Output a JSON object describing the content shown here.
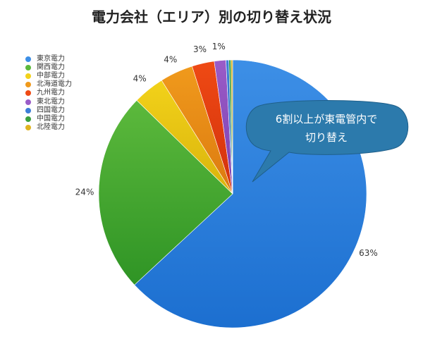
{
  "chart_data": {
    "type": "pie",
    "title": "電力会社（エリア）別の切り替え状況",
    "slices": [
      {
        "name": "東京電力",
        "value": 63.1,
        "label": "63%",
        "color": "#3d8fe6",
        "color2": "#1c6fd0"
      },
      {
        "name": "関西電力",
        "value": 24.2,
        "label": "24%",
        "color": "#5cb93c",
        "color2": "#2f9425"
      },
      {
        "name": "中部電力",
        "value": 3.8,
        "label": "4%",
        "color": "#f2d21a",
        "color2": "#d9b30c"
      },
      {
        "name": "北海道電力",
        "value": 4.0,
        "label": "4%",
        "color": "#f09a1c",
        "color2": "#dc7a10"
      },
      {
        "name": "九州電力",
        "value": 2.7,
        "label": "3%",
        "color": "#ef4a14",
        "color2": "#d2300c"
      },
      {
        "name": "東北電力",
        "value": 1.4,
        "label": "1%",
        "color": "#9a5cc8",
        "color2": "#7d3fae"
      },
      {
        "name": "四国電力",
        "value": 0.35,
        "label": "",
        "color": "#3c7ed8",
        "color2": "#2a65bf"
      },
      {
        "name": "中国電力",
        "value": 0.25,
        "label": "",
        "color": "#3aa040",
        "color2": "#2a8a30"
      },
      {
        "name": "北陸電力",
        "value": 0.2,
        "label": "",
        "color": "#e0b420",
        "color2": "#c89a10"
      }
    ],
    "legend_position": "top-left",
    "annotation": {
      "line1": "6割以上が東電管内で",
      "line2": "切り替え"
    }
  }
}
